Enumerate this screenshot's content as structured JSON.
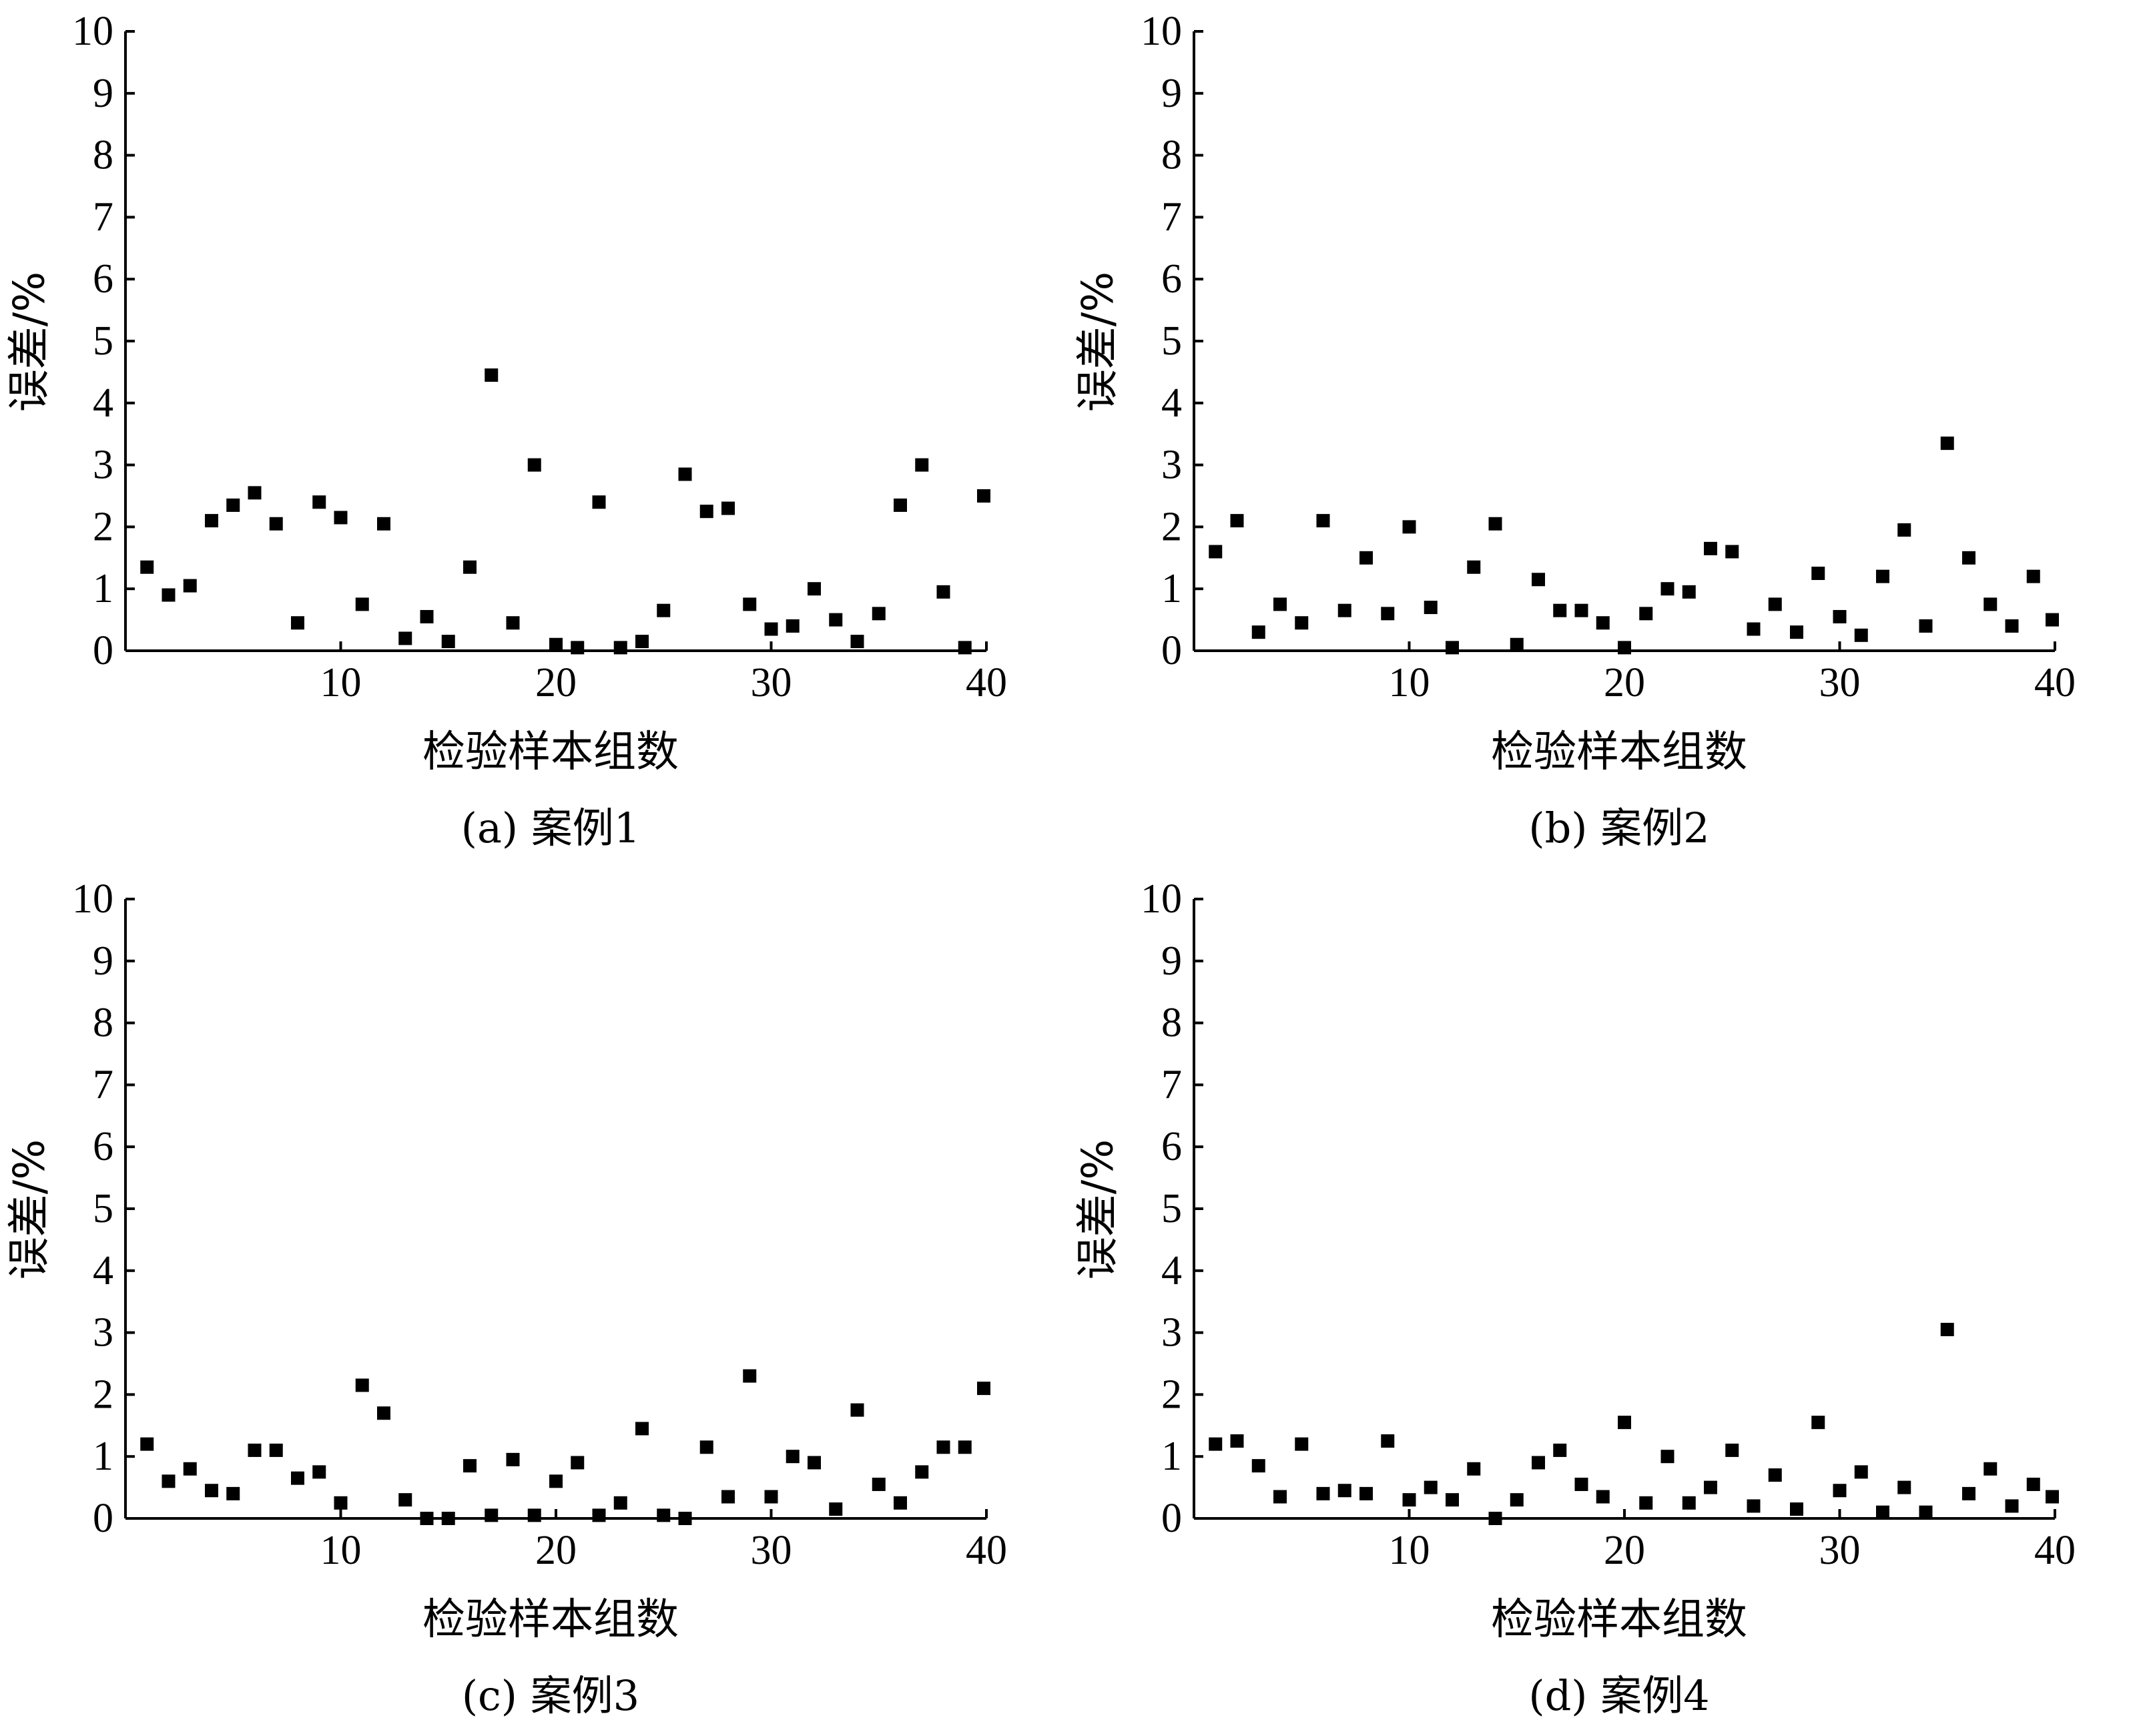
{
  "chart_data": [
    {
      "type": "scatter",
      "caption": "(a) 案例1",
      "xlabel": "检验样本组数",
      "ylabel": "误差/%",
      "xlim": [
        0,
        40
      ],
      "ylim": [
        0,
        10
      ],
      "xticks": [
        10,
        20,
        30,
        40
      ],
      "yticks": [
        0,
        1,
        2,
        3,
        4,
        5,
        6,
        7,
        8,
        9,
        10
      ],
      "x": [
        1,
        2,
        3,
        4,
        5,
        6,
        7,
        8,
        9,
        10,
        11,
        12,
        13,
        14,
        15,
        16,
        17,
        18,
        19,
        20,
        21,
        22,
        23,
        24,
        25,
        26,
        27,
        28,
        29,
        30,
        31,
        32,
        33,
        34,
        35,
        36,
        37,
        38,
        39,
        40
      ],
      "y": [
        1.35,
        0.9,
        1.05,
        2.1,
        2.35,
        2.55,
        2.05,
        0.45,
        2.4,
        2.15,
        0.75,
        2.05,
        0.2,
        0.55,
        0.15,
        1.35,
        4.45,
        0.45,
        3.0,
        0.1,
        0.05,
        2.4,
        0.05,
        0.15,
        0.65,
        2.85,
        2.25,
        2.3,
        0.75,
        0.35,
        0.4,
        1.0,
        0.5,
        0.15,
        0.6,
        2.35,
        3.0,
        0.95,
        0.05,
        2.5
      ]
    },
    {
      "type": "scatter",
      "caption": "(b) 案例2",
      "xlabel": "检验样本组数",
      "ylabel": "误差/%",
      "xlim": [
        0,
        40
      ],
      "ylim": [
        0,
        10
      ],
      "xticks": [
        10,
        20,
        30,
        40
      ],
      "yticks": [
        0,
        1,
        2,
        3,
        4,
        5,
        6,
        7,
        8,
        9,
        10
      ],
      "x": [
        1,
        2,
        3,
        4,
        5,
        6,
        7,
        8,
        9,
        10,
        11,
        12,
        13,
        14,
        15,
        16,
        17,
        18,
        19,
        20,
        21,
        22,
        23,
        24,
        25,
        26,
        27,
        28,
        29,
        30,
        31,
        32,
        33,
        34,
        35,
        36,
        37,
        38,
        39,
        40
      ],
      "y": [
        1.6,
        2.1,
        0.3,
        0.75,
        0.45,
        2.1,
        0.65,
        1.5,
        0.6,
        2.0,
        0.7,
        0.05,
        1.35,
        2.05,
        0.1,
        1.15,
        0.65,
        0.65,
        0.45,
        0.05,
        0.6,
        1.0,
        0.95,
        1.65,
        1.6,
        0.35,
        0.75,
        0.3,
        1.25,
        0.55,
        0.25,
        1.2,
        1.95,
        0.4,
        3.35,
        1.5,
        0.75,
        0.4,
        1.2,
        0.5
      ]
    },
    {
      "type": "scatter",
      "caption": "(c) 案例3",
      "xlabel": "检验样本组数",
      "ylabel": "误差/%",
      "xlim": [
        0,
        40
      ],
      "ylim": [
        0,
        10
      ],
      "xticks": [
        10,
        20,
        30,
        40
      ],
      "yticks": [
        0,
        1,
        2,
        3,
        4,
        5,
        6,
        7,
        8,
        9,
        10
      ],
      "x": [
        1,
        2,
        3,
        4,
        5,
        6,
        7,
        8,
        9,
        10,
        11,
        12,
        13,
        14,
        15,
        16,
        17,
        18,
        19,
        20,
        21,
        22,
        23,
        24,
        25,
        26,
        27,
        28,
        29,
        30,
        31,
        32,
        33,
        34,
        35,
        36,
        37,
        38,
        39,
        40
      ],
      "y": [
        1.2,
        0.6,
        0.8,
        0.45,
        0.4,
        1.1,
        1.1,
        0.65,
        0.75,
        0.25,
        2.15,
        1.7,
        0.3,
        0.0,
        0.0,
        0.85,
        0.05,
        0.95,
        0.05,
        0.6,
        0.9,
        0.05,
        0.25,
        1.45,
        0.05,
        0.0,
        1.15,
        0.35,
        2.3,
        0.35,
        1.0,
        0.9,
        0.15,
        1.75,
        0.55,
        0.25,
        0.75,
        1.15,
        1.15,
        2.1
      ]
    },
    {
      "type": "scatter",
      "caption": "(d) 案例4",
      "xlabel": "检验样本组数",
      "ylabel": "误差/%",
      "xlim": [
        0,
        40
      ],
      "ylim": [
        0,
        10
      ],
      "xticks": [
        10,
        20,
        30,
        40
      ],
      "yticks": [
        0,
        1,
        2,
        3,
        4,
        5,
        6,
        7,
        8,
        9,
        10
      ],
      "x": [
        1,
        2,
        3,
        4,
        5,
        6,
        7,
        8,
        9,
        10,
        11,
        12,
        13,
        14,
        15,
        16,
        17,
        18,
        19,
        20,
        21,
        22,
        23,
        24,
        25,
        26,
        27,
        28,
        29,
        30,
        31,
        32,
        33,
        34,
        35,
        36,
        37,
        38,
        39,
        40
      ],
      "y": [
        1.2,
        1.25,
        0.85,
        0.35,
        1.2,
        0.4,
        0.45,
        0.4,
        1.25,
        0.3,
        0.5,
        0.3,
        0.8,
        0.0,
        0.3,
        0.9,
        1.1,
        0.55,
        0.35,
        1.55,
        0.25,
        1.0,
        0.25,
        0.5,
        1.1,
        0.2,
        0.7,
        0.15,
        1.55,
        0.45,
        0.75,
        0.1,
        0.5,
        0.1,
        3.05,
        0.4,
        0.8,
        0.2,
        0.55,
        0.35
      ]
    }
  ]
}
